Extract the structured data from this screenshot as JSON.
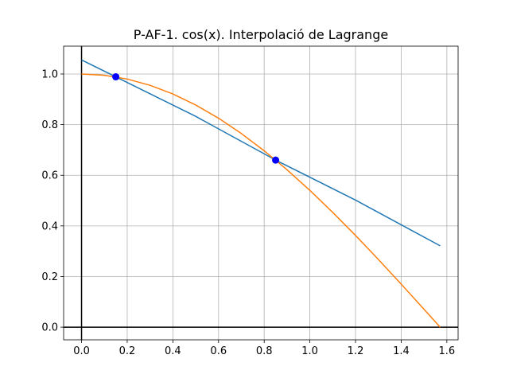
{
  "chart_data": {
    "type": "line",
    "title": "P-AF-1. cos(x). Interpolació de Lagrange",
    "xlabel": "",
    "ylabel": "",
    "xlim": [
      -0.0785,
      1.6493
    ],
    "ylim": [
      -0.05,
      1.11
    ],
    "grid": true,
    "xticks": [
      0.0,
      0.2,
      0.4,
      0.6,
      0.8,
      1.0,
      1.2,
      1.4,
      1.6
    ],
    "xtick_labels": [
      "0.0",
      "0.2",
      "0.4",
      "0.6",
      "0.8",
      "1.0",
      "1.2",
      "1.4",
      "1.6"
    ],
    "yticks": [
      0.0,
      0.2,
      0.4,
      0.6,
      0.8,
      1.0
    ],
    "ytick_labels": [
      "0.0",
      "0.2",
      "0.4",
      "0.6",
      "0.8",
      "1.0"
    ],
    "series": [
      {
        "color": "#1f77b4",
        "x": [
          0.0,
          0.15,
          0.5,
          0.85,
          1.2,
          1.5708
        ],
        "y": [
          1.0557,
          0.9888,
          0.8327,
          0.66,
          0.5019,
          0.3214
        ]
      },
      {
        "color": "#ff7f0e",
        "x": [
          0.0,
          0.1,
          0.2,
          0.3,
          0.4,
          0.5,
          0.6,
          0.7,
          0.8,
          0.9,
          1.0,
          1.1,
          1.2,
          1.3,
          1.4,
          1.5,
          1.5708
        ],
        "y": [
          1.0,
          0.995,
          0.9801,
          0.9553,
          0.9211,
          0.8776,
          0.8253,
          0.7648,
          0.6967,
          0.6216,
          0.5403,
          0.4536,
          0.3624,
          0.2675,
          0.17,
          0.0707,
          0.0
        ]
      }
    ],
    "points": {
      "color": "#0000ff",
      "x": [
        0.15,
        0.85
      ],
      "y": [
        0.9888,
        0.66
      ]
    },
    "reference_lines": {
      "color": "#000000",
      "x": [
        0.0
      ],
      "y": [
        0.0
      ]
    }
  }
}
